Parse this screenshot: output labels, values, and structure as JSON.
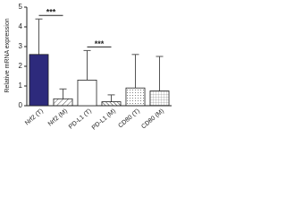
{
  "chart_data": {
    "type": "bar",
    "y_label": "Relative mRNA expression",
    "categories": [
      "Nrf2 (T)",
      "Nrf2 (M)",
      "PD-L1 (T)",
      "PD-L1 (M)",
      "CD80 (T)",
      "CD80 (M)"
    ],
    "values": [
      2.6,
      0.35,
      1.3,
      0.2,
      0.9,
      0.75
    ],
    "errors": [
      1.8,
      0.5,
      1.5,
      0.35,
      1.7,
      1.75
    ],
    "colors": [
      "#2d2a7c",
      "#ffffff",
      "#ffffff",
      "#ffffff",
      "#ffffff",
      "#ffffff"
    ],
    "patterns": [
      "solid",
      "diagonal",
      "none",
      "diagonal-dense",
      "dots",
      "grid"
    ],
    "ylim": [
      0,
      5
    ],
    "yticks": [
      0,
      1,
      2,
      3,
      4,
      5
    ],
    "annotations": [
      {
        "text": "***",
        "pair": [
          0,
          1
        ]
      },
      {
        "text": "***",
        "pair": [
          2,
          3
        ]
      }
    ]
  }
}
